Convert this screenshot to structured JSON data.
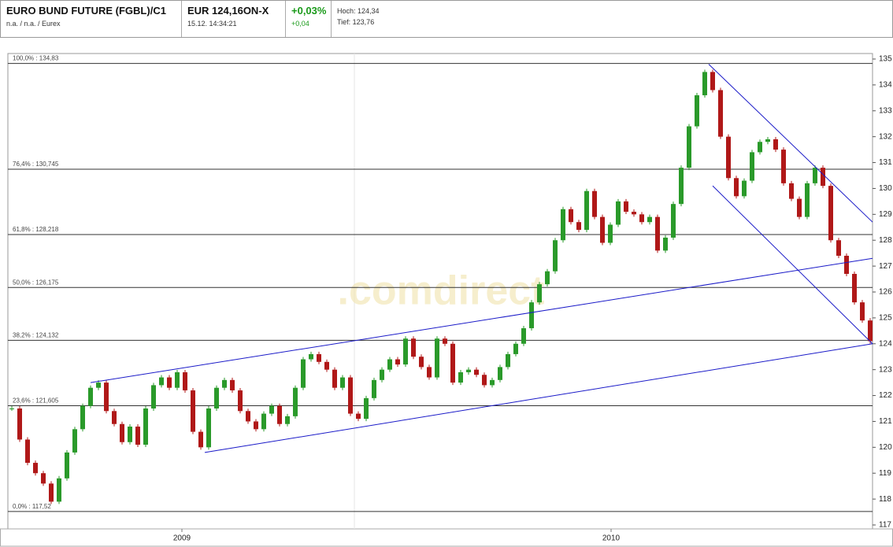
{
  "header": {
    "name": "EURO BUND FUTURE (FGBL)/C1",
    "info": "n.a. / n.a. / Eurex",
    "price": "EUR 124,16ON-X",
    "time": "15.12. 14:34:21",
    "change_pct": "+0,03%",
    "change_abs": "+0,04",
    "high": "Hoch: 124,34",
    "low": "Tief: 123,76"
  },
  "chart_data": {
    "type": "candlestick",
    "watermark": ".comdirect",
    "series": [
      {
        "up_color": "#2a9a2a",
        "down_color": "#b01818",
        "values": [
          121.5,
          120.3,
          119.4,
          119.0,
          118.6,
          117.9,
          118.8,
          119.8,
          120.7,
          121.6,
          122.3,
          122.5,
          121.4,
          120.9,
          120.2,
          120.8,
          120.1,
          121.5,
          122.4,
          122.7,
          122.3,
          122.9,
          122.2,
          120.6,
          120.0,
          121.5,
          122.3,
          122.6,
          122.2,
          121.4,
          121.0,
          120.7,
          121.3,
          121.6,
          120.9,
          121.2,
          122.3,
          123.4,
          123.6,
          123.3,
          123.0,
          122.3,
          122.7,
          121.3,
          121.1,
          121.9,
          122.6,
          123.0,
          123.4,
          123.2,
          124.2,
          123.5,
          123.1,
          122.7,
          124.2,
          124.0,
          122.5,
          122.9,
          123.0,
          122.8,
          122.4,
          122.6,
          123.1,
          123.6,
          124.0,
          124.6,
          125.6,
          126.3,
          126.8,
          128.0,
          129.2,
          128.7,
          128.4,
          129.9,
          128.9,
          127.9,
          128.6,
          129.5,
          129.1,
          129.0,
          128.7,
          128.9,
          127.6,
          128.1,
          129.4,
          130.8,
          132.4,
          133.6,
          134.5,
          133.8,
          132.0,
          130.4,
          129.7,
          130.3,
          131.4,
          131.8,
          131.9,
          131.5,
          130.2,
          129.6,
          128.9,
          130.2,
          130.8,
          130.1,
          128.0,
          127.4,
          126.7,
          125.6,
          124.9,
          124.1
        ]
      }
    ],
    "xlim": [
      -0.5,
      109.5
    ],
    "xticks": [
      {
        "value": 21.6,
        "label": "2009"
      },
      {
        "value": 76.1,
        "label": "2010"
      }
    ],
    "ylim": [
      117,
      135
    ],
    "yticks": [
      117,
      118,
      119,
      120,
      121,
      122,
      123,
      124,
      125,
      126,
      127,
      128,
      129,
      130,
      131,
      132,
      133,
      134,
      135
    ],
    "levels": [
      {
        "value": 134.83,
        "label": "100,0% : 134,83"
      },
      {
        "value": 130.745,
        "label": "76,4% : 130,745"
      },
      {
        "value": 128.218,
        "label": "61,8% : 128,218"
      },
      {
        "value": 126.175,
        "label": "50,0% : 126,175"
      },
      {
        "value": 124.132,
        "label": "38,2% : 124,132"
      },
      {
        "value": 121.605,
        "label": "23,6% : 121,605"
      },
      {
        "value": 117.52,
        "label": "0,0% : 117,52"
      }
    ],
    "level_color": "#333333",
    "trendline_color": "#1a1ac8",
    "trendlines": [
      {
        "x": [
          10,
          109.3
        ],
        "y": [
          122.5,
          127.3
        ]
      },
      {
        "x": [
          24.5,
          109.3
        ],
        "y": [
          119.8,
          124.0
        ]
      },
      {
        "x": [
          88.5,
          109.3
        ],
        "y": [
          134.8,
          128.7
        ]
      },
      {
        "x": [
          89,
          109.3
        ],
        "y": [
          130.1,
          124.0
        ]
      }
    ]
  }
}
